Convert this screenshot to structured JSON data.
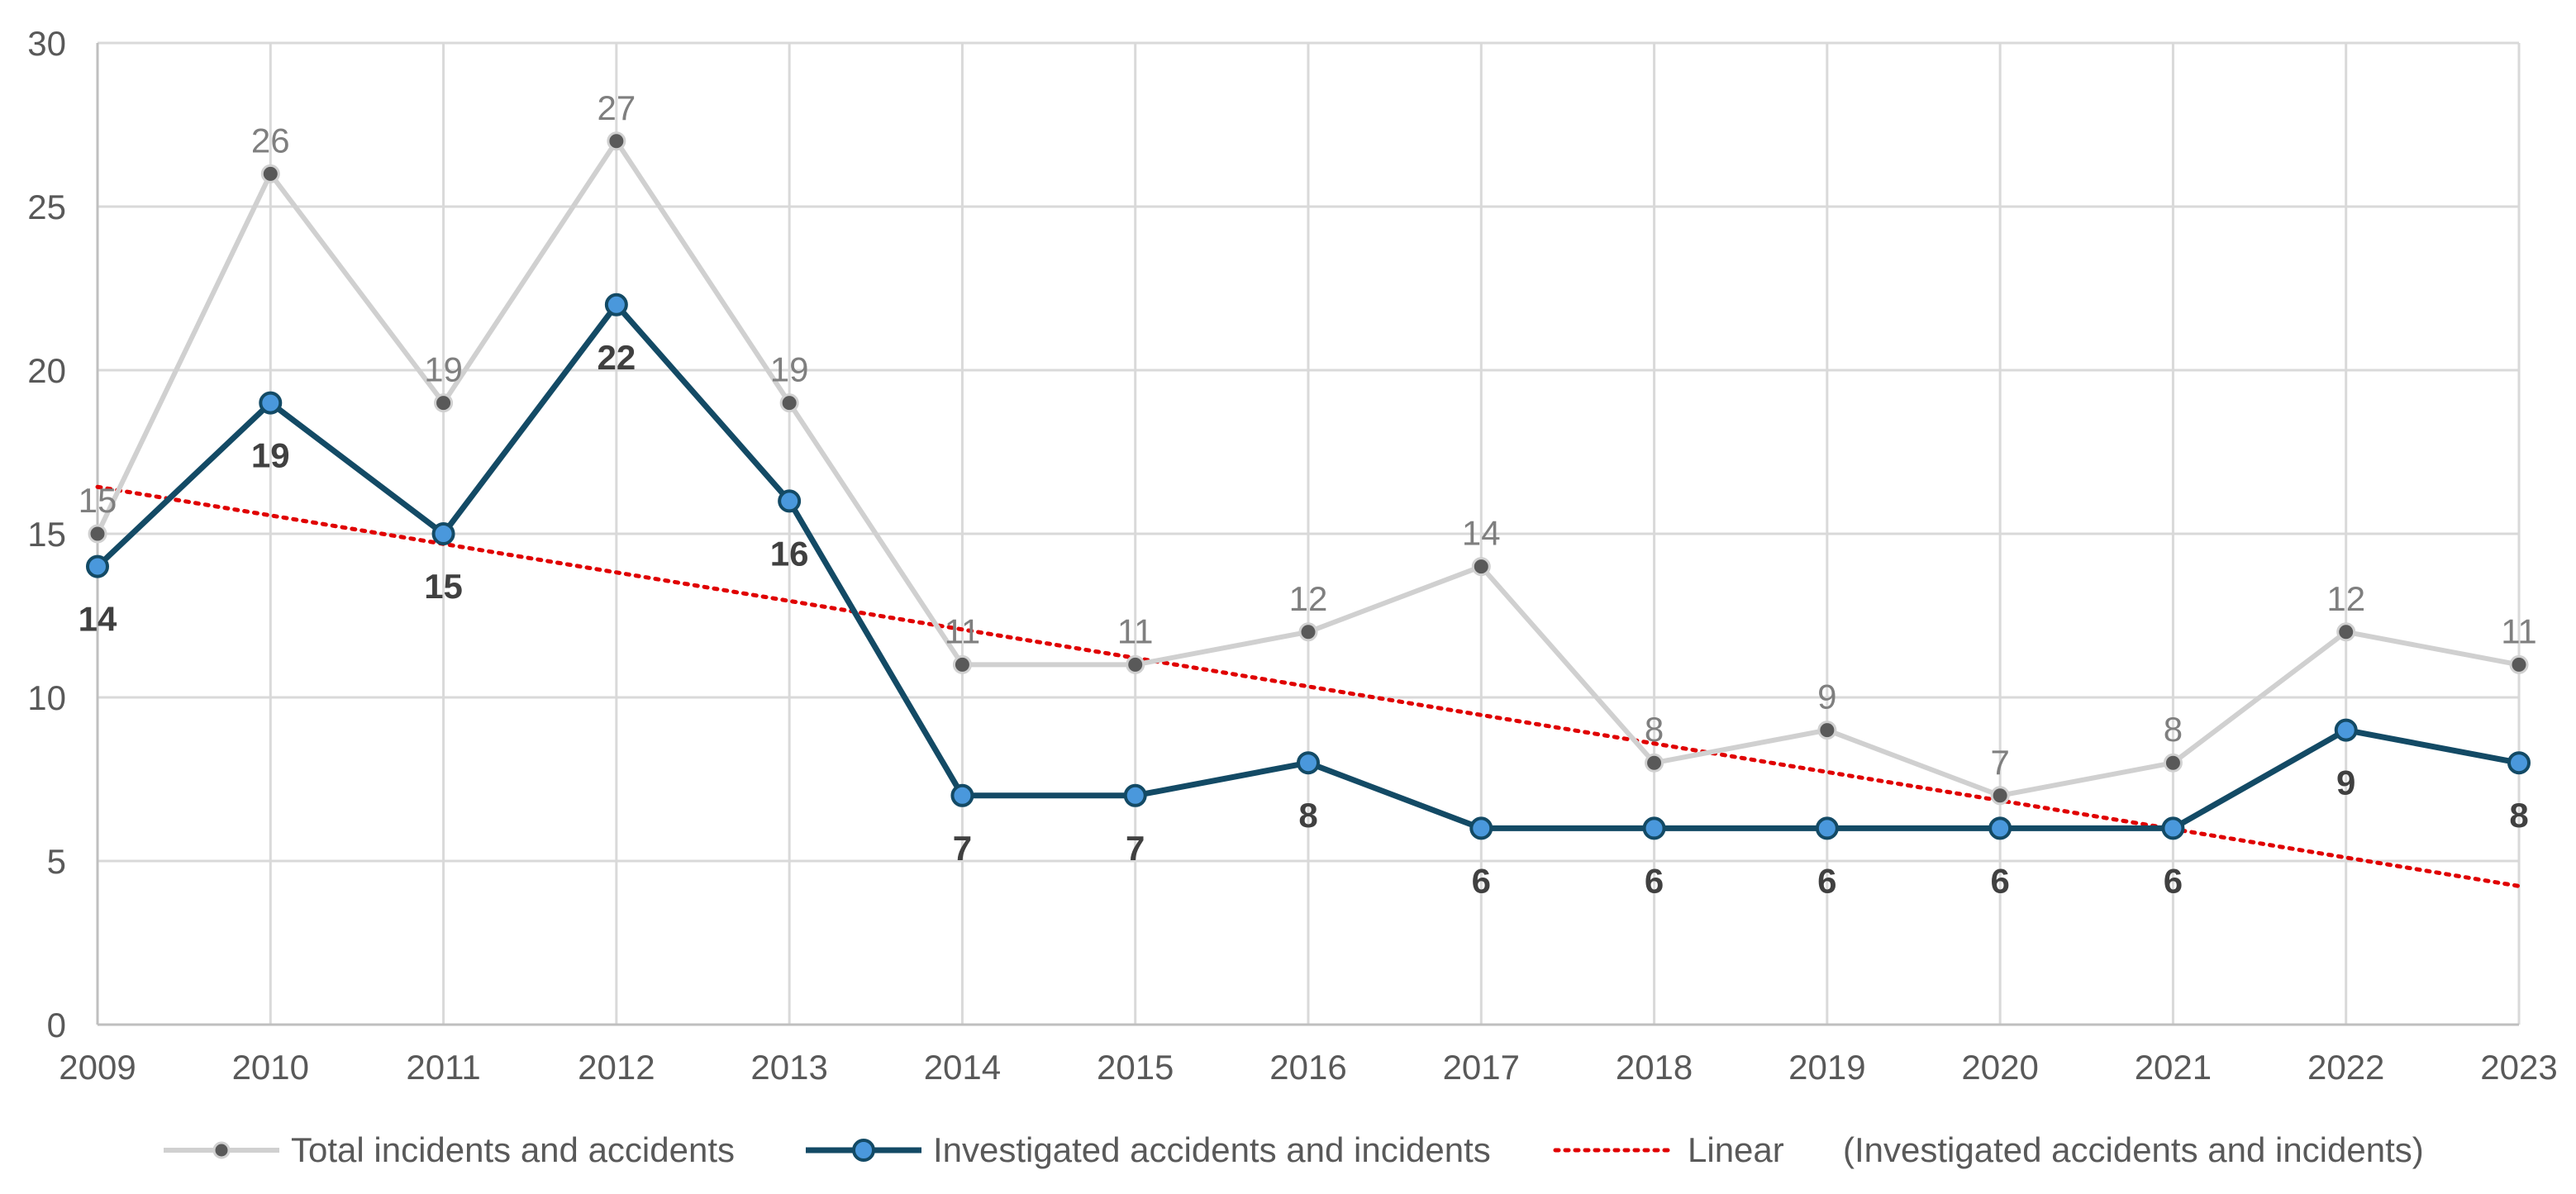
{
  "chart_data": {
    "type": "line",
    "title": "",
    "xlabel": "",
    "ylabel": "",
    "x": [
      "2009",
      "2010",
      "2011",
      "2012",
      "2013",
      "2014",
      "2015",
      "2016",
      "2017",
      "2018",
      "2019",
      "2020",
      "2021",
      "2022",
      "2023"
    ],
    "ylim": [
      0,
      30
    ],
    "yticks": [
      "0",
      "5",
      "10",
      "15",
      "20",
      "25",
      "30"
    ],
    "grid": true,
    "legend_position": "bottom",
    "series": [
      {
        "name": "Total incidents and accidents",
        "values": [
          15,
          26,
          19,
          27,
          19,
          11,
          11,
          12,
          14,
          8,
          9,
          7,
          8,
          12,
          11
        ],
        "line_color": "#d0d0d0",
        "marker_color": "#595959",
        "labels_position": "above"
      },
      {
        "name": "Investigated accidents and incidents",
        "values": [
          14,
          19,
          15,
          22,
          16,
          7,
          7,
          8,
          6,
          6,
          6,
          6,
          6,
          9,
          8
        ],
        "line_color": "#134a65",
        "marker_color": "#4a98dc",
        "labels_position": "below"
      }
    ],
    "trendline": {
      "name": "Linear",
      "of_series": "(Investigated accidents and incidents)",
      "type": "linear",
      "color": "#e00000"
    }
  }
}
